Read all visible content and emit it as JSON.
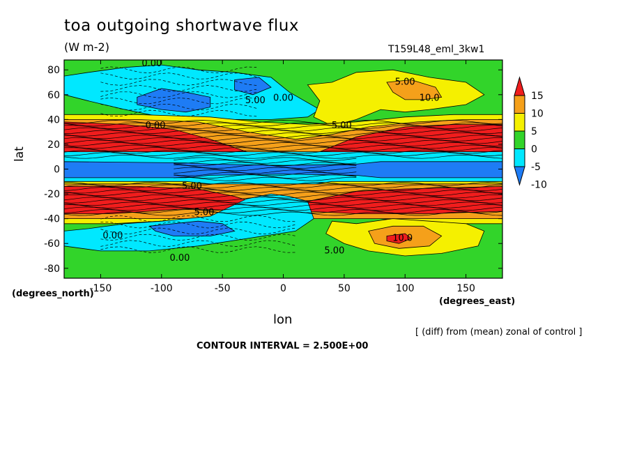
{
  "chart_data": {
    "type": "heatmap",
    "title": "toa outgoing shortwave flux",
    "units": "(W m-2)",
    "run_label": "T159L48_eml_3kw1",
    "xlabel": "lon",
    "ylabel": "lat",
    "x_unit_label": "(degrees_east)",
    "y_unit_label": "(degrees_north)",
    "footnote": "[ (diff) from (mean) zonal of control ]",
    "contour_interval_text": "CONTOUR INTERVAL = 2.500E+00",
    "xlim": [
      -180,
      180
    ],
    "ylim": [
      -88,
      88
    ],
    "x_ticks": [
      -150,
      -100,
      -50,
      0,
      50,
      100,
      150
    ],
    "y_ticks": [
      80,
      60,
      40,
      20,
      0,
      -20,
      -40,
      -60,
      -80
    ],
    "x_tick_labels": [
      "-150",
      "-100",
      "-50",
      "0",
      "50",
      "100",
      "150"
    ],
    "y_tick_labels": [
      "80",
      "60",
      "40",
      "20",
      "0",
      "-20",
      "-40",
      "-60",
      "-80"
    ],
    "colorbar": {
      "levels": [
        15,
        10,
        5,
        0,
        -5,
        -10
      ],
      "labels": [
        "15",
        "10",
        "5",
        "0",
        "-5",
        "-10"
      ],
      "colors": [
        "#f01d1d",
        "#f5a01a",
        "#f5f000",
        "#32d42a",
        "#00e8ff",
        "#1e7cf5"
      ]
    },
    "colors": {
      "green": "#32d42a",
      "cyan": "#00e8ff",
      "blue": "#1e7cf5",
      "yellow": "#f5f000",
      "orange": "#f5a01a",
      "red": "#f01d1d"
    },
    "regions": [
      {
        "color": "cyan",
        "poly": [
          [
            -180,
            75
          ],
          [
            -160,
            78
          ],
          [
            -130,
            82
          ],
          [
            -100,
            84
          ],
          [
            -70,
            80
          ],
          [
            -40,
            78
          ],
          [
            -10,
            74
          ],
          [
            5,
            62
          ],
          [
            30,
            48
          ],
          [
            20,
            42
          ],
          [
            -10,
            40
          ],
          [
            -50,
            40
          ],
          [
            -100,
            42
          ],
          [
            -130,
            48
          ],
          [
            -160,
            55
          ],
          [
            -180,
            60
          ]
        ]
      },
      {
        "color": "blue",
        "poly": [
          [
            -120,
            58
          ],
          [
            -100,
            65
          ],
          [
            -80,
            62
          ],
          [
            -60,
            58
          ],
          [
            -60,
            50
          ],
          [
            -80,
            46
          ],
          [
            -100,
            48
          ],
          [
            -120,
            52
          ]
        ]
      },
      {
        "color": "blue",
        "poly": [
          [
            -40,
            72
          ],
          [
            -20,
            74
          ],
          [
            -10,
            66
          ],
          [
            -25,
            60
          ],
          [
            -40,
            64
          ]
        ]
      },
      {
        "color": "yellow",
        "poly": [
          [
            20,
            68
          ],
          [
            40,
            70
          ],
          [
            60,
            78
          ],
          [
            90,
            80
          ],
          [
            120,
            74
          ],
          [
            150,
            70
          ],
          [
            165,
            60
          ],
          [
            150,
            52
          ],
          [
            120,
            48
          ],
          [
            100,
            46
          ],
          [
            80,
            48
          ],
          [
            60,
            40
          ],
          [
            40,
            35
          ],
          [
            25,
            42
          ],
          [
            30,
            55
          ]
        ]
      },
      {
        "color": "orange",
        "poly": [
          [
            85,
            70
          ],
          [
            105,
            72
          ],
          [
            125,
            66
          ],
          [
            130,
            58
          ],
          [
            115,
            56
          ],
          [
            100,
            56
          ],
          [
            90,
            62
          ]
        ]
      },
      {
        "color": "yellow",
        "poly": [
          [
            -180,
            44
          ],
          [
            -120,
            44
          ],
          [
            -60,
            42
          ],
          [
            -20,
            38
          ],
          [
            20,
            36
          ],
          [
            60,
            38
          ],
          [
            100,
            42
          ],
          [
            140,
            44
          ],
          [
            180,
            44
          ],
          [
            180,
            8
          ],
          [
            -180,
            8
          ]
        ]
      },
      {
        "color": "orange",
        "poly": [
          [
            -180,
            40
          ],
          [
            -120,
            40
          ],
          [
            -70,
            38
          ],
          [
            -30,
            30
          ],
          [
            10,
            24
          ],
          [
            40,
            28
          ],
          [
            70,
            34
          ],
          [
            110,
            38
          ],
          [
            150,
            40
          ],
          [
            180,
            40
          ],
          [
            180,
            8
          ],
          [
            -180,
            8
          ]
        ]
      },
      {
        "color": "red",
        "poly": [
          [
            -180,
            38
          ],
          [
            -130,
            36
          ],
          [
            -90,
            32
          ],
          [
            -60,
            24
          ],
          [
            -30,
            14
          ],
          [
            0,
            10
          ],
          [
            30,
            14
          ],
          [
            60,
            26
          ],
          [
            100,
            34
          ],
          [
            140,
            36
          ],
          [
            180,
            36
          ],
          [
            180,
            8
          ],
          [
            -180,
            8
          ]
        ]
      },
      {
        "color": "cyan",
        "poly": [
          [
            -180,
            14
          ],
          [
            180,
            14
          ],
          [
            180,
            -14
          ],
          [
            -180,
            -14
          ]
        ]
      },
      {
        "color": "blue",
        "poly": [
          [
            -180,
            6
          ],
          [
            -80,
            5
          ],
          [
            -60,
            4
          ],
          [
            0,
            3
          ],
          [
            60,
            4
          ],
          [
            80,
            6
          ],
          [
            180,
            6
          ],
          [
            180,
            -7
          ],
          [
            80,
            -7
          ],
          [
            60,
            -5
          ],
          [
            0,
            -4
          ],
          [
            -60,
            -5
          ],
          [
            -80,
            -7
          ],
          [
            -180,
            -7
          ]
        ]
      },
      {
        "color": "yellow",
        "poly": [
          [
            -180,
            -10
          ],
          [
            -120,
            -10
          ],
          [
            -80,
            -10
          ],
          [
            -40,
            -14
          ],
          [
            0,
            -16
          ],
          [
            40,
            -10
          ],
          [
            80,
            -10
          ],
          [
            130,
            -10
          ],
          [
            180,
            -10
          ],
          [
            180,
            -44
          ],
          [
            140,
            -44
          ],
          [
            100,
            -42
          ],
          [
            60,
            -38
          ],
          [
            20,
            -34
          ],
          [
            -20,
            -38
          ],
          [
            -60,
            -40
          ],
          [
            -100,
            -42
          ],
          [
            -140,
            -44
          ],
          [
            -180,
            -44
          ]
        ]
      },
      {
        "color": "orange",
        "poly": [
          [
            -180,
            -12
          ],
          [
            180,
            -12
          ],
          [
            180,
            -40
          ],
          [
            -180,
            -40
          ]
        ]
      },
      {
        "color": "red",
        "poly": [
          [
            -180,
            -14
          ],
          [
            -120,
            -14
          ],
          [
            -70,
            -16
          ],
          [
            -40,
            -22
          ],
          [
            -20,
            -28
          ],
          [
            0,
            -30
          ],
          [
            30,
            -24
          ],
          [
            60,
            -18
          ],
          [
            100,
            -16
          ],
          [
            180,
            -14
          ],
          [
            180,
            -34
          ],
          [
            120,
            -36
          ],
          [
            60,
            -36
          ],
          [
            20,
            -34
          ],
          [
            -20,
            -34
          ],
          [
            -80,
            -32
          ],
          [
            -140,
            -36
          ],
          [
            -180,
            -36
          ]
        ]
      },
      {
        "color": "cyan",
        "poly": [
          [
            -180,
            -50
          ],
          [
            -160,
            -48
          ],
          [
            -130,
            -44
          ],
          [
            -100,
            -42
          ],
          [
            -60,
            -38
          ],
          [
            -30,
            -24
          ],
          [
            -10,
            -20
          ],
          [
            5,
            -22
          ],
          [
            20,
            -26
          ],
          [
            25,
            -40
          ],
          [
            10,
            -50
          ],
          [
            -30,
            -56
          ],
          [
            -70,
            -62
          ],
          [
            -110,
            -66
          ],
          [
            -150,
            -66
          ],
          [
            -180,
            -62
          ]
        ]
      },
      {
        "color": "blue",
        "poly": [
          [
            -110,
            -46
          ],
          [
            -90,
            -44
          ],
          [
            -70,
            -42
          ],
          [
            -50,
            -44
          ],
          [
            -40,
            -50
          ],
          [
            -60,
            -54
          ],
          [
            -90,
            -54
          ],
          [
            -105,
            -50
          ]
        ]
      },
      {
        "color": "yellow",
        "poly": [
          [
            40,
            -42
          ],
          [
            60,
            -44
          ],
          [
            90,
            -40
          ],
          [
            120,
            -42
          ],
          [
            150,
            -44
          ],
          [
            165,
            -50
          ],
          [
            160,
            -62
          ],
          [
            130,
            -68
          ],
          [
            100,
            -70
          ],
          [
            70,
            -66
          ],
          [
            50,
            -60
          ],
          [
            35,
            -52
          ]
        ]
      },
      {
        "color": "orange",
        "poly": [
          [
            70,
            -50
          ],
          [
            90,
            -46
          ],
          [
            115,
            -46
          ],
          [
            130,
            -54
          ],
          [
            120,
            -62
          ],
          [
            95,
            -64
          ],
          [
            75,
            -60
          ]
        ]
      },
      {
        "color": "red",
        "poly": [
          [
            85,
            -54
          ],
          [
            100,
            -52
          ],
          [
            105,
            -56
          ],
          [
            95,
            -60
          ],
          [
            85,
            -58
          ]
        ]
      }
    ],
    "contour_labels": [
      {
        "text": "0.00",
        "lon": -108,
        "lat": 83
      },
      {
        "text": "5.00",
        "lon": 100,
        "lat": 68
      },
      {
        "text": "5.00",
        "lon": -23,
        "lat": 53
      },
      {
        "text": "10.0",
        "lon": 120,
        "lat": 55
      },
      {
        "text": "0.00",
        "lon": 0,
        "lat": 55
      },
      {
        "text": "0.00",
        "lon": -105,
        "lat": 33
      },
      {
        "text": "5.00",
        "lon": 48,
        "lat": 33
      },
      {
        "text": "5.00",
        "lon": -75,
        "lat": -16
      },
      {
        "text": "5.00",
        "lon": -65,
        "lat": -37
      },
      {
        "text": "0.00",
        "lon": -140,
        "lat": -56
      },
      {
        "text": "10.0",
        "lon": 98,
        "lat": -58
      },
      {
        "text": "5.00",
        "lon": 42,
        "lat": -68
      },
      {
        "text": "0.00",
        "lon": -85,
        "lat": -74
      }
    ]
  }
}
